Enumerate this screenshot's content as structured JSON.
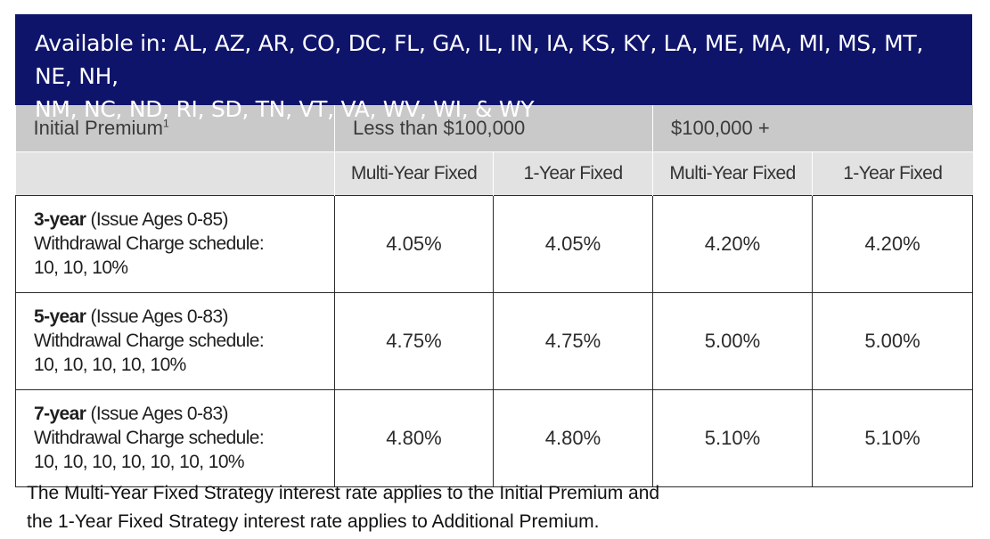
{
  "banner": {
    "line1": "Available in: AL, AZ, AR, CO, DC, FL, GA, IL, IN, IA, KS, KY, LA, ME, MA, MI, MS, MT, NE, NH,",
    "line2": "NM, NC, ND, RI, SD, TN, VT, VA, WV, WI, & WY"
  },
  "header": {
    "initial_premium": "Initial Premium",
    "footnote_mark": "1",
    "group_low": "Less than $100,000",
    "group_high": "$100,000 +",
    "sub": [
      "Multi-Year Fixed",
      "1-Year Fixed",
      "Multi-Year Fixed",
      "1-Year Fixed"
    ]
  },
  "rows": [
    {
      "term": "3-year",
      "ages": " (Issue Ages 0-85)",
      "schedule_label": "Withdrawal Charge schedule:",
      "schedule": "10, 10, 10%",
      "rates": [
        "4.05%",
        "4.05%",
        "4.20%",
        "4.20%"
      ]
    },
    {
      "term": "5-year",
      "ages": " (Issue Ages 0-83)",
      "schedule_label": "Withdrawal Charge schedule:",
      "schedule": "10, 10, 10, 10, 10%",
      "rates": [
        "4.75%",
        "4.75%",
        "5.00%",
        "5.00%"
      ]
    },
    {
      "term": "7-year",
      "ages": " (Issue Ages 0-83)",
      "schedule_label": "Withdrawal Charge schedule:",
      "schedule": "10, 10, 10, 10, 10, 10, 10%",
      "rates": [
        "4.80%",
        "4.80%",
        "5.10%",
        "5.10%"
      ]
    }
  ],
  "footnote": {
    "line1": "The Multi-Year Fixed Strategy interest rate applies to the Initial Premium and",
    "line2": "the 1-Year Fixed Strategy interest rate applies to Additional Premium."
  },
  "colors": {
    "banner_bg": "#0f146b",
    "header_bg": "#c9c9c9",
    "subheader_bg": "#e2e2e2"
  }
}
